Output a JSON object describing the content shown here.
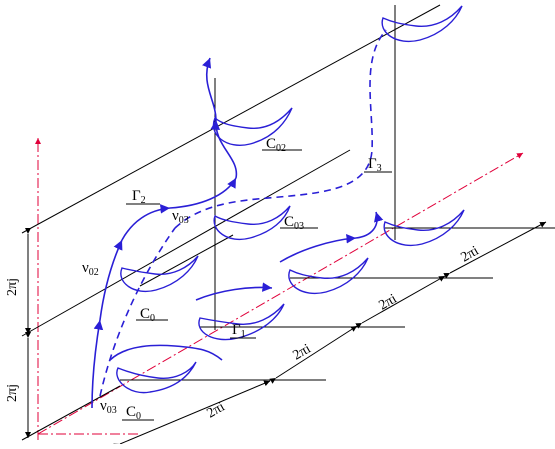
{
  "colors": {
    "axis": "#e0003a",
    "curve": "#2a1fd6",
    "ink": "#000000"
  },
  "labels": {
    "c02": "C",
    "c02_sub": "02",
    "c03": "C",
    "c03_sub": "03",
    "c0_mid": "C",
    "c0_mid_sub": "0",
    "c0_low": "C",
    "c0_low_sub": "0",
    "g1": "Γ",
    "g1_sub": "1",
    "g2": "Γ",
    "g2_sub": "2",
    "g3": "Γ",
    "g3_sub": "3",
    "nu03_top": "ν",
    "nu03_top_sub": "03",
    "nu02": "ν",
    "nu02_sub": "02",
    "nu03_bot": "ν",
    "nu03_bot_sub": "03"
  },
  "dimensions": {
    "two_pi_j_upper": "2πj",
    "two_pi_j_lower": "2πj",
    "two_pi_i_1": "2πi",
    "two_pi_i_2": "2πi",
    "two_pi_i_3": "2πi",
    "two_pi_i_4": "2πi"
  }
}
